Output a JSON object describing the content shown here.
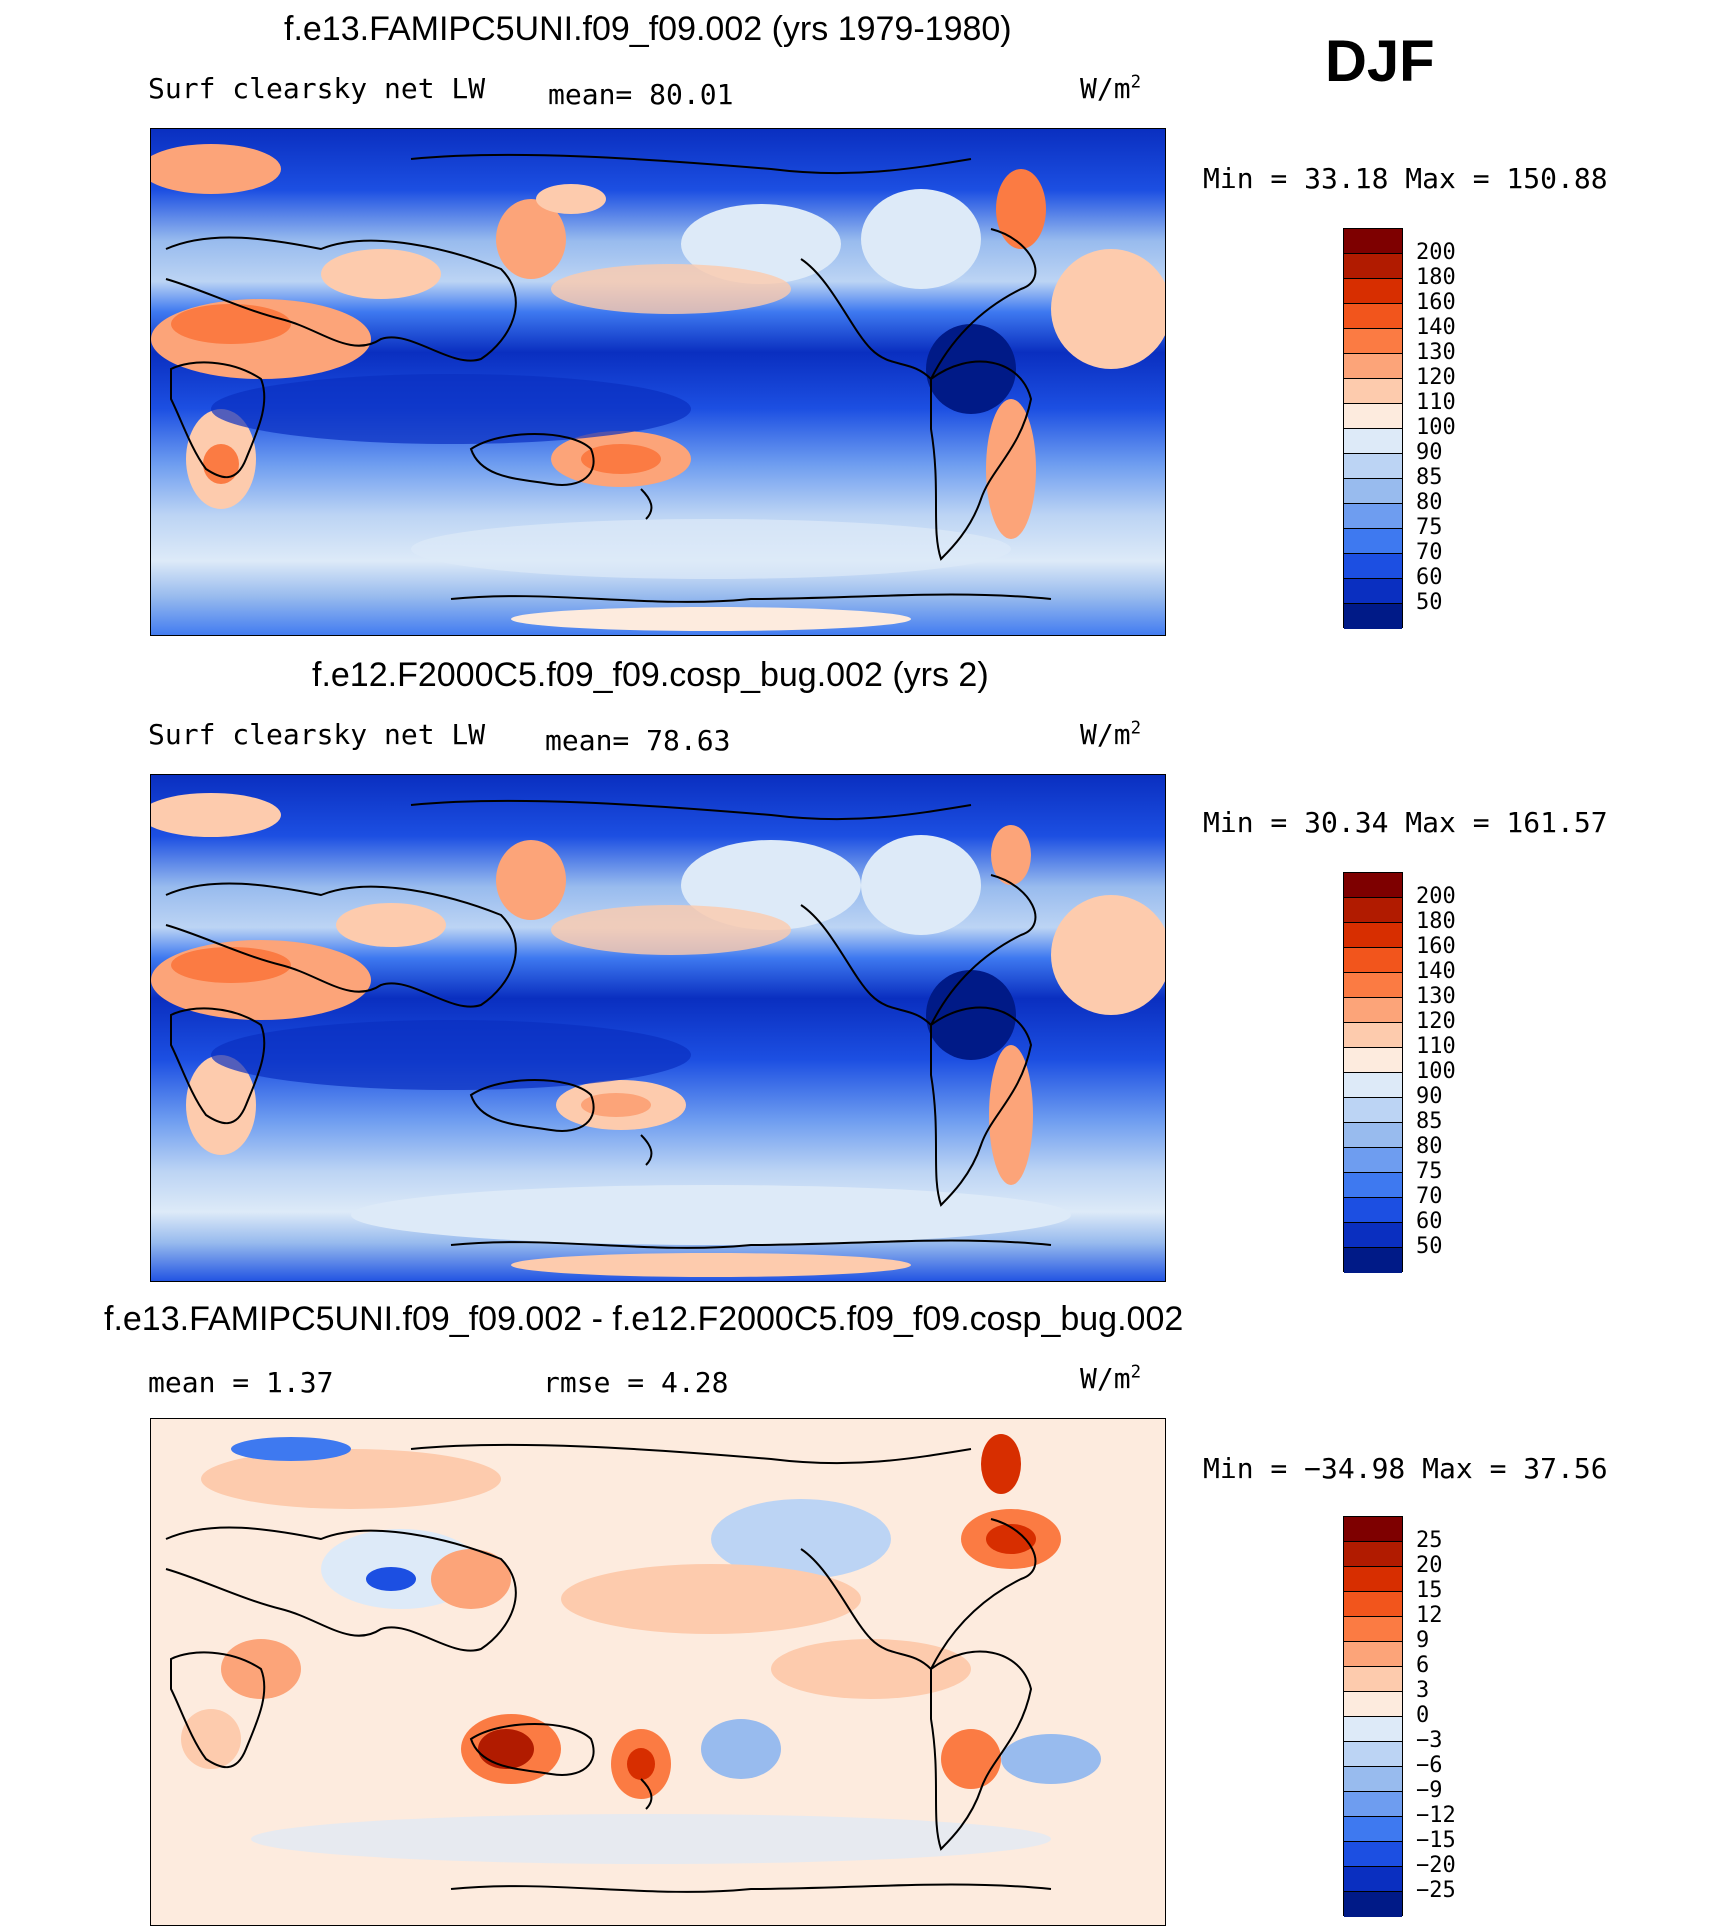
{
  "season": "DJF",
  "panels": [
    {
      "title": "f.e13.FAMIPC5UNI.f09_f09.002 (yrs 1979-1980)",
      "left_label": "Surf  clearsky  net  LW",
      "mid_label": "mean=   80.01",
      "units": "W/m",
      "units_sup": "2",
      "minmax": "Min  =   33.18  Max  =  150.88"
    },
    {
      "title": "f.e12.F2000C5.f09_f09.cosp_bug.002 (yrs 2)",
      "left_label": "Surf  clearsky  net  LW",
      "mid_label": "mean=   78.63",
      "units": "W/m",
      "units_sup": "2",
      "minmax": "Min  =   30.34  Max  =  161.57"
    },
    {
      "title": "f.e13.FAMIPC5UNI.f09_f09.002 - f.e12.F2000C5.f09_f09.cosp_bug.002",
      "left_label": "mean  =     1.37",
      "mid_label": "rmse  =     4.28",
      "units": "W/m",
      "units_sup": "2",
      "minmax": "Min  = −34.98  Max  =   37.56"
    }
  ],
  "chart_data": [
    {
      "type": "heatmap",
      "title": "f.e13.FAMIPC5UNI.f09_f09.002 (yrs 1979-1980)",
      "variable": "Surf clearsky net LW",
      "units": "W/m2",
      "mean": 80.01,
      "min": 33.18,
      "max": 150.88,
      "levels": [
        "200",
        "180",
        "160",
        "140",
        "130",
        "120",
        "110",
        "100",
        "90",
        "85",
        "80",
        "75",
        "70",
        "60",
        "50"
      ],
      "colors": [
        "#7e0000",
        "#b11b00",
        "#d72e00",
        "#f2551c",
        "#fb7b43",
        "#fca479",
        "#fdcbad",
        "#fdebde",
        "#ddeaf8",
        "#bcd4f4",
        "#98bbee",
        "#6e9df0",
        "#3e79f0",
        "#1c4fe2",
        "#0a2fc0",
        "#001a87"
      ]
    },
    {
      "type": "heatmap",
      "title": "f.e12.F2000C5.f09_f09.cosp_bug.002 (yrs 2)",
      "variable": "Surf clearsky net LW",
      "units": "W/m2",
      "mean": 78.63,
      "min": 30.34,
      "max": 161.57,
      "levels": [
        "200",
        "180",
        "160",
        "140",
        "130",
        "120",
        "110",
        "100",
        "90",
        "85",
        "80",
        "75",
        "70",
        "60",
        "50"
      ],
      "colors": [
        "#7e0000",
        "#b11b00",
        "#d72e00",
        "#f2551c",
        "#fb7b43",
        "#fca479",
        "#fdcbad",
        "#fdebde",
        "#ddeaf8",
        "#bcd4f4",
        "#98bbee",
        "#6e9df0",
        "#3e79f0",
        "#1c4fe2",
        "#0a2fc0",
        "#001a87"
      ]
    },
    {
      "type": "heatmap",
      "title": "f.e13.FAMIPC5UNI.f09_f09.002 - f.e12.F2000C5.f09_f09.cosp_bug.002",
      "units": "W/m2",
      "mean": 1.37,
      "rmse": 4.28,
      "min": -34.98,
      "max": 37.56,
      "levels": [
        "25",
        "20",
        "15",
        "12",
        "9",
        "6",
        "3",
        "0",
        "−3",
        "−6",
        "−9",
        "−12",
        "−15",
        "−20",
        "−25"
      ],
      "colors": [
        "#7e0000",
        "#b11b00",
        "#d72e00",
        "#f2551c",
        "#fb7b43",
        "#fca479",
        "#fdcbad",
        "#fdebde",
        "#ddeaf8",
        "#bcd4f4",
        "#98bbee",
        "#6e9df0",
        "#3e79f0",
        "#1c4fe2",
        "#0a2fc0",
        "#001a87"
      ]
    }
  ]
}
